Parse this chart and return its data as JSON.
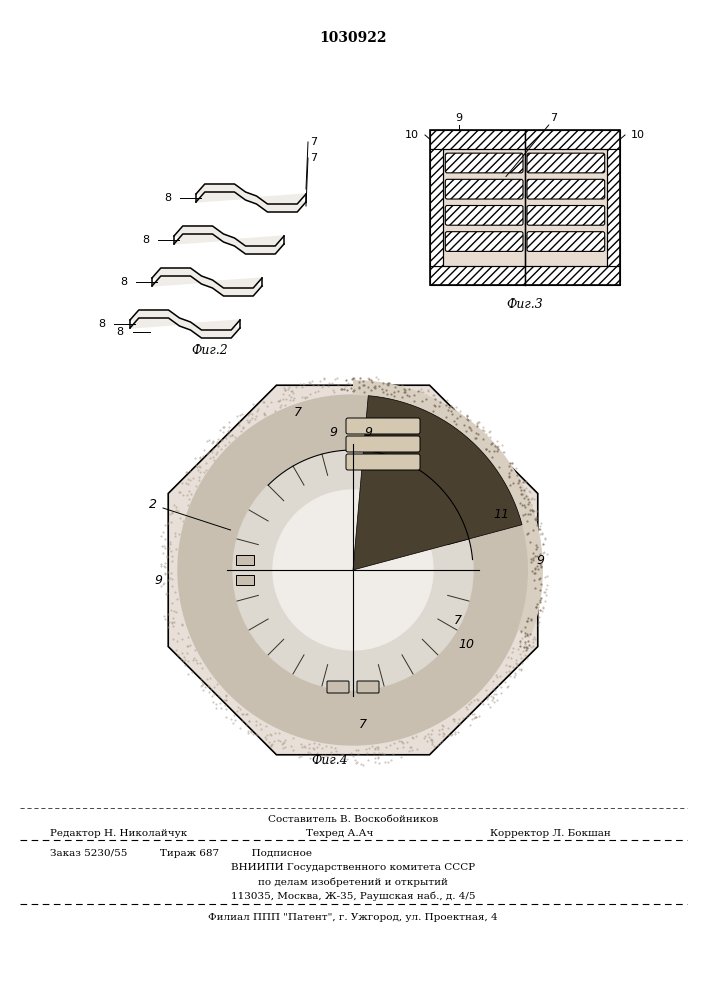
{
  "patent_number": "1030922",
  "background_color": "#ffffff",
  "footer_lines": [
    {
      "left": "",
      "center": "Составитель В. Воскобойников",
      "right": ""
    },
    {
      "left": "Редактор Н. Николайчук",
      "center": "Техред А.Ач",
      "right": "Корректор Л. Бокшан"
    }
  ],
  "footer_block": [
    "Заказ 5230/55          Тираж 687          Подписное",
    "ВНИИПИ Государственного комитета СССР",
    "по делам изобретений и открытий",
    "113035, Москва, Ж-35, Раушская наб., д. 4/5"
  ],
  "footer_last": "Филиал ППП \"Патент\", г. Ужгород, ул. Проектная, 4",
  "fig2_caption": "Фиг.2",
  "fig3_caption": "Фиг.3",
  "fig4_caption": "Фиг.4"
}
